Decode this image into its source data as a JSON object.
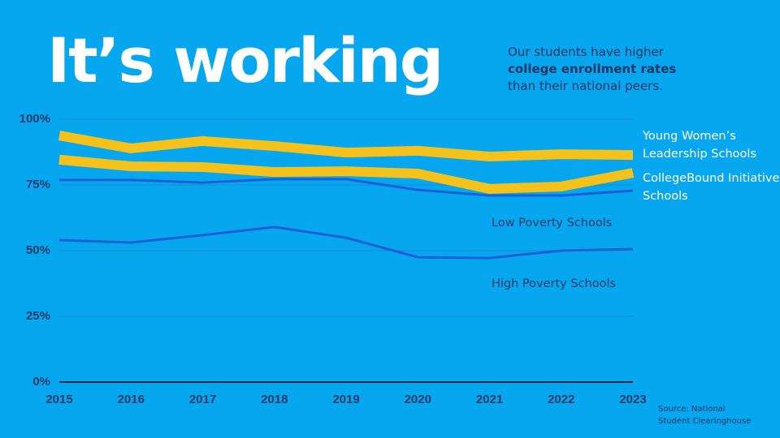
{
  "chart_data": {
    "type": "line",
    "title": "It’s working",
    "subtitle": [
      "Our students have higher",
      "college enrollment rates",
      "than their national peers."
    ],
    "source": [
      "Source: National",
      "Student Clearinghouse"
    ],
    "categories": [
      "2015",
      "2016",
      "2017",
      "2018",
      "2019",
      "2020",
      "2021",
      "2022",
      "2023"
    ],
    "series": [
      {
        "name": "Young Women’s Leadership Schools",
        "color": "#f4c21b",
        "values": [
          93.8,
          88.9,
          91.7,
          89.8,
          87.3,
          88.0,
          85.8,
          86.7,
          86.4
        ]
      },
      {
        "name": "CollegeBound Initiative Schools",
        "color": "#f4c21b",
        "values": [
          84.6,
          82.1,
          81.8,
          79.9,
          80.2,
          79.3,
          73.5,
          74.4,
          79.6
        ]
      },
      {
        "name": "Low Poverty Schools",
        "color": "#1c60d8",
        "values": [
          76.9,
          76.9,
          75.9,
          77.2,
          77.2,
          73.1,
          71.0,
          71.0,
          72.8
        ]
      },
      {
        "name": "High Poverty Schools",
        "color": "#1c60d8",
        "values": [
          54.0,
          53.1,
          55.9,
          59.0,
          54.9,
          47.5,
          47.2,
          50.0,
          50.6
        ]
      }
    ],
    "ylim": [
      0,
      100
    ],
    "yticks": [
      {
        "value": 0,
        "label": "0%"
      },
      {
        "value": 25,
        "label": "25%"
      },
      {
        "value": 50,
        "label": "50%"
      },
      {
        "value": 75,
        "label": "75%"
      },
      {
        "value": 100,
        "label": "100%"
      }
    ],
    "grid": true
  }
}
